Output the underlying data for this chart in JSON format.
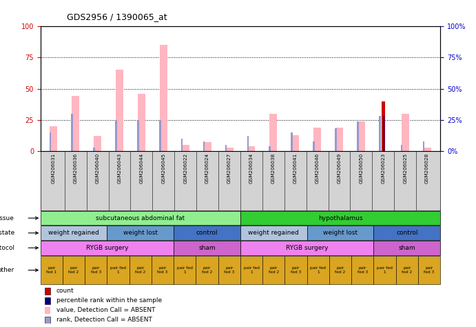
{
  "title": "GDS2956 / 1390065_at",
  "samples": [
    "GSM206031",
    "GSM206036",
    "GSM206040",
    "GSM206043",
    "GSM206044",
    "GSM206045",
    "GSM206022",
    "GSM206024",
    "GSM206027",
    "GSM206034",
    "GSM206038",
    "GSM206041",
    "GSM206046",
    "GSM206049",
    "GSM206050",
    "GSM206023",
    "GSM206025",
    "GSM206028"
  ],
  "pink_bars": [
    20,
    44,
    12,
    65,
    46,
    85,
    5,
    7,
    3,
    4,
    30,
    13,
    19,
    19,
    24,
    0,
    30,
    3
  ],
  "blue_bars": [
    15,
    30,
    3,
    25,
    25,
    25,
    10,
    8,
    5,
    12,
    4,
    15,
    8,
    18,
    24,
    28,
    5,
    8
  ],
  "red_bars": [
    0,
    0,
    0,
    0,
    0,
    0,
    0,
    0,
    0,
    0,
    0,
    0,
    0,
    0,
    0,
    40,
    0,
    0
  ],
  "dark_blue_bars": [
    0,
    0,
    0,
    0,
    0,
    0,
    0,
    0,
    0,
    0,
    0,
    0,
    0,
    0,
    0,
    28,
    0,
    0
  ],
  "tissue_groups": [
    {
      "label": "subcutaneous abdominal fat",
      "start": 0,
      "end": 9,
      "color": "#90EE90"
    },
    {
      "label": "hypothalamus",
      "start": 9,
      "end": 18,
      "color": "#32CD32"
    }
  ],
  "disease_groups": [
    {
      "label": "weight regained",
      "start": 0,
      "end": 3,
      "color": "#B0C4DE"
    },
    {
      "label": "weight lost",
      "start": 3,
      "end": 6,
      "color": "#6699CC"
    },
    {
      "label": "control",
      "start": 6,
      "end": 9,
      "color": "#4472C4"
    },
    {
      "label": "weight regained",
      "start": 9,
      "end": 12,
      "color": "#B0C4DE"
    },
    {
      "label": "weight lost",
      "start": 12,
      "end": 15,
      "color": "#6699CC"
    },
    {
      "label": "control",
      "start": 15,
      "end": 18,
      "color": "#4472C4"
    }
  ],
  "protocol_groups": [
    {
      "label": "RYGB surgery",
      "start": 0,
      "end": 6,
      "color": "#EE82EE"
    },
    {
      "label": "sham",
      "start": 6,
      "end": 9,
      "color": "#CC66CC"
    },
    {
      "label": "RYGB surgery",
      "start": 9,
      "end": 15,
      "color": "#EE82EE"
    },
    {
      "label": "sham",
      "start": 15,
      "end": 18,
      "color": "#CC66CC"
    }
  ],
  "other_cells": [
    "pair\nfed 1",
    "pair\nfed 2",
    "pair\nfed 3",
    "pair fed\n1",
    "pair\nfed 2",
    "pair\nfed 3",
    "pair fed\n1",
    "pair\nfed 2",
    "pair\nfed 3",
    "pair fed\n1",
    "pair\nfed 2",
    "pair\nfed 3",
    "pair fed\n1",
    "pair\nfed 2",
    "pair\nfed 3",
    "pair fed\n1",
    "pair\nfed 2",
    "pair\nfed 3"
  ],
  "other_color": "#DAA520",
  "ylim": [
    0,
    100
  ],
  "yticks": [
    0,
    25,
    50,
    75,
    100
  ],
  "pink_color": "#FFB6C1",
  "blue_color": "#9999CC",
  "red_color": "#CC0000",
  "dark_blue_color": "#000080",
  "left_tick_color": "#CC0000",
  "right_tick_color": "#0000CC",
  "xtick_bg": "#D3D3D3"
}
